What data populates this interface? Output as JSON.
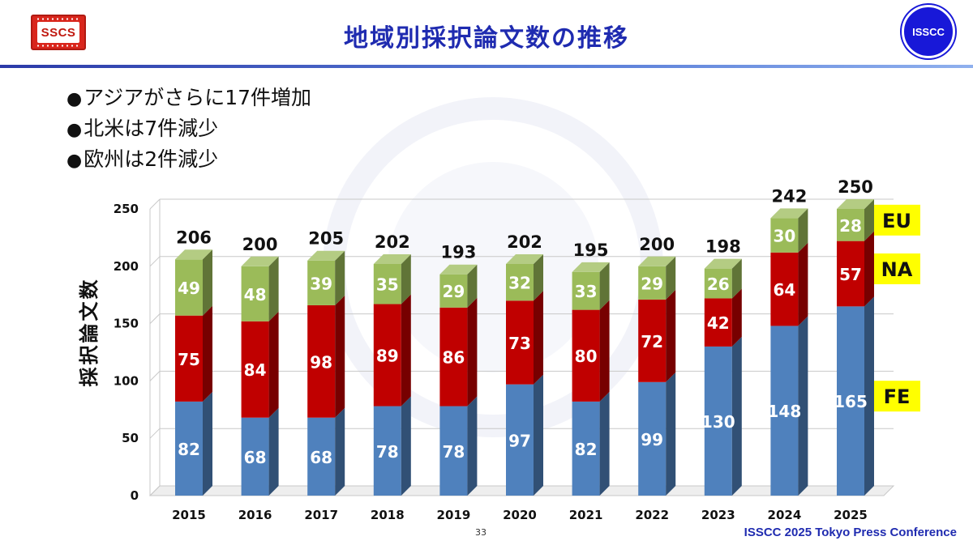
{
  "header": {
    "title": "地域別採択論文数の推移",
    "logo_left_text": "SSCS",
    "logo_right_text": "ISSCC"
  },
  "bullets": [
    "アジアがさらに17件増加",
    "北米は7件減少",
    "欧州は2件減少"
  ],
  "footer": {
    "page_number": "33",
    "conference": "ISSCC 2025 Tokyo Press Conference"
  },
  "colors": {
    "FE": "#4f81bd",
    "NA": "#c00000",
    "EU": "#9bbb59",
    "legend_bg": "#ffff00",
    "title": "#1f2bb0"
  },
  "chart_data": {
    "type": "bar",
    "stacked": true,
    "three_d": true,
    "title": "",
    "xlabel": "",
    "ylabel": "採択論文数",
    "ylim": [
      0,
      250
    ],
    "yticks": [
      0,
      50,
      100,
      150,
      200,
      250
    ],
    "grid": true,
    "legend_position": "right",
    "categories": [
      "2015",
      "2016",
      "2017",
      "2018",
      "2019",
      "2020",
      "2021",
      "2022",
      "2023",
      "2024",
      "2025"
    ],
    "series": [
      {
        "name": "FE",
        "color": "#4f81bd",
        "values": [
          82,
          68,
          68,
          78,
          78,
          97,
          82,
          99,
          130,
          148,
          165
        ]
      },
      {
        "name": "NA",
        "color": "#c00000",
        "values": [
          75,
          84,
          98,
          89,
          86,
          73,
          80,
          72,
          42,
          64,
          57
        ]
      },
      {
        "name": "EU",
        "color": "#9bbb59",
        "values": [
          49,
          48,
          39,
          35,
          29,
          32,
          33,
          29,
          26,
          30,
          28
        ]
      }
    ],
    "totals": [
      206,
      200,
      205,
      202,
      193,
      202,
      195,
      200,
      198,
      242,
      250
    ]
  }
}
